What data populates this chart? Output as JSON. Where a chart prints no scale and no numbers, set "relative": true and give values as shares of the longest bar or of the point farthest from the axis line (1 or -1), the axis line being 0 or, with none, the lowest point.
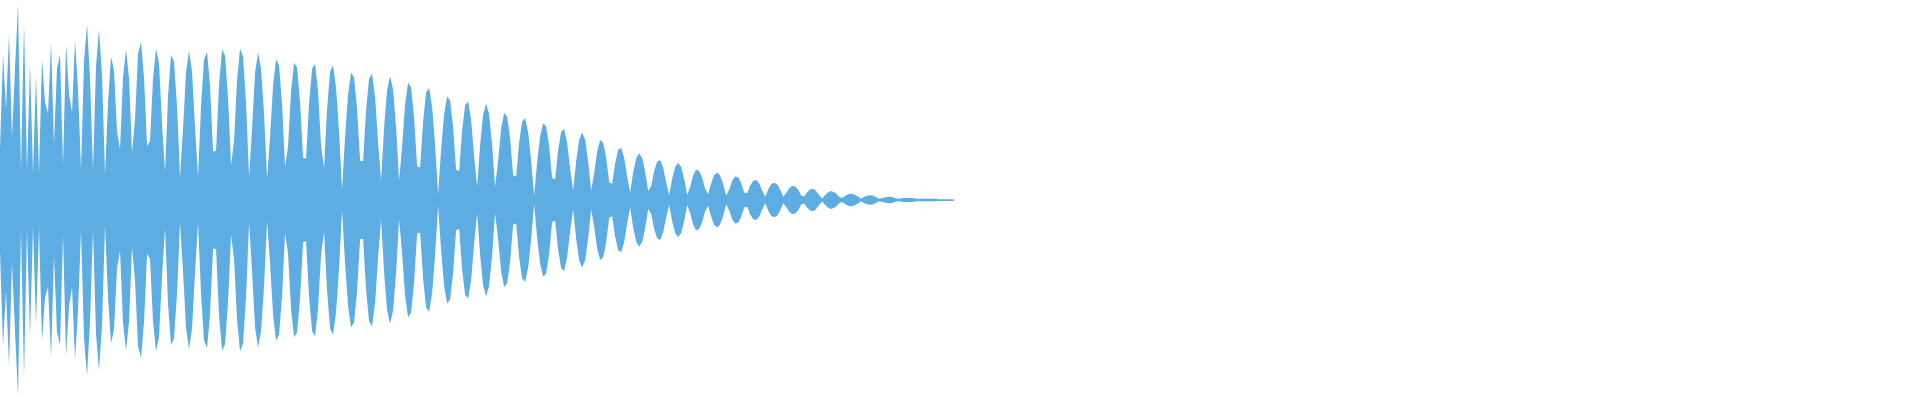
{
  "chart_data": {
    "type": "area",
    "relative": true,
    "categories": [
      null,
      null,
      null,
      null,
      null,
      null,
      null,
      null,
      null,
      null,
      null,
      null,
      null,
      null,
      null,
      null,
      null,
      null,
      null,
      null,
      null,
      null,
      null,
      null,
      null,
      null,
      null,
      null,
      null,
      null,
      null,
      null,
      null,
      null,
      null,
      null,
      null,
      null,
      null,
      null,
      null,
      null,
      null,
      null,
      null,
      null,
      null,
      null,
      null,
      null,
      null,
      null,
      null,
      null,
      null,
      null,
      null,
      null,
      null,
      null,
      null,
      null,
      null,
      null,
      null,
      null,
      null,
      null,
      null,
      null,
      null,
      null,
      null,
      null,
      null,
      null,
      null,
      null,
      null,
      null,
      null,
      null,
      null,
      null,
      null,
      null,
      null,
      null,
      null,
      null,
      null,
      null,
      null,
      null,
      null,
      null,
      null,
      null,
      null,
      null,
      null,
      null,
      null,
      null,
      null,
      null,
      null,
      null,
      null,
      null,
      null,
      null,
      null,
      null,
      null,
      null,
      null,
      null,
      null,
      null,
      null,
      null,
      null,
      null,
      null,
      null,
      null,
      null,
      null,
      null,
      null,
      null,
      null,
      null,
      null,
      null,
      null,
      null,
      null,
      null,
      null,
      null,
      null,
      null,
      null,
      null,
      null,
      null,
      null,
      null,
      null,
      null,
      null,
      null,
      null,
      null,
      null,
      null,
      null,
      null,
      null,
      null,
      null,
      null,
      null,
      null,
      null,
      null,
      null,
      null,
      null,
      null,
      null,
      null,
      null,
      null,
      null,
      null,
      null,
      null,
      null,
      null,
      null,
      null,
      null,
      null,
      null,
      null,
      null,
      null,
      null,
      null,
      null,
      null,
      null,
      null,
      null,
      null,
      null,
      null,
      null,
      null,
      null,
      null,
      null,
      null,
      null,
      null,
      null,
      null,
      null,
      null,
      null,
      null,
      null,
      null,
      null,
      null,
      null,
      null,
      null,
      null,
      null,
      null,
      null,
      null,
      null,
      null,
      null,
      null,
      null,
      null,
      null,
      null,
      null,
      null,
      null,
      null,
      null,
      null,
      null,
      null,
      null,
      null,
      null,
      null,
      null,
      null,
      null,
      null,
      null,
      null,
      null,
      null,
      null,
      null,
      null,
      null,
      null,
      null,
      null,
      null,
      null,
      null,
      null,
      null,
      null,
      null,
      null,
      null,
      null,
      null,
      null,
      null,
      null,
      null,
      null,
      null,
      null,
      null,
      null,
      null,
      null,
      null,
      null,
      null,
      null,
      null,
      null,
      null,
      null,
      null,
      null,
      null,
      null,
      null,
      null,
      null,
      null,
      null,
      null,
      null,
      null,
      null,
      null,
      null,
      null,
      null,
      null,
      null,
      null,
      null,
      null,
      null,
      null,
      null,
      null,
      null,
      null
    ],
    "series": [
      {
        "color": "#5dade2",
        "values": [
          0.266,
          0.744,
          0.466,
          0.846,
          0.322,
          0.668,
          1.0,
          0.154,
          0.9,
          0.154,
          0.696,
          0.138,
          0.634,
          0.142,
          0.72,
          0.5,
          0.442,
          0.804,
          0.286,
          0.674,
          0.74,
          0.178,
          0.796,
          0.544,
          0.446,
          0.816,
          0.564,
          0.156,
          0.706,
          0.898,
          0.616,
          0.154,
          0.684,
          0.868,
          0.636,
          0.13,
          0.498,
          0.732,
          0.66,
          0.348,
          0.26,
          0.626,
          0.768,
          0.62,
          0.242,
          0.408,
          0.746,
          0.806,
          0.622,
          0.274,
          0.302,
          0.618,
          0.772,
          0.698,
          0.388,
          0.144,
          0.53,
          0.74,
          0.706,
          0.474,
          0.116,
          0.366,
          0.654,
          0.76,
          0.654,
          0.366,
          0.118,
          0.482,
          0.718,
          0.756,
          0.58,
          0.248,
          0.25,
          0.59,
          0.768,
          0.736,
          0.52,
          0.178,
          0.302,
          0.612,
          0.772,
          0.732,
          0.492,
          0.118,
          0.364,
          0.65,
          0.754,
          0.67,
          0.436,
          0.11,
          0.322,
          0.584,
          0.718,
          0.686,
          0.486,
          0.168,
          0.276,
          0.556,
          0.7,
          0.676,
          0.498,
          0.214,
          0.212,
          0.494,
          0.67,
          0.696,
          0.552,
          0.276,
          0.164,
          0.466,
          0.656,
          0.688,
          0.572,
          0.344,
          0.052,
          0.326,
          0.542,
          0.65,
          0.624,
          0.462,
          0.2,
          0.198,
          0.458,
          0.62,
          0.644,
          0.526,
          0.292,
          0.1,
          0.368,
          0.562,
          0.632,
          0.562,
          0.368,
          0.1,
          0.274,
          0.49,
          0.598,
          0.574,
          0.42,
          0.172,
          0.166,
          0.402,
          0.548,
          0.572,
          0.474,
          0.28,
          0.03,
          0.26,
          0.438,
          0.528,
          0.508,
          0.372,
          0.154,
          0.148,
          0.354,
          0.484,
          0.502,
          0.408,
          0.222,
          0.068,
          0.282,
          0.436,
          0.492,
          0.436,
          0.282,
          0.068,
          0.2,
          0.362,
          0.444,
          0.426,
          0.312,
          0.126,
          0.12,
          0.292,
          0.4,
          0.418,
          0.346,
          0.202,
          0.02,
          0.192,
          0.324,
          0.392,
          0.376,
          0.276,
          0.112,
          0.106,
          0.254,
          0.348,
          0.362,
          0.292,
          0.16,
          0.048,
          0.198,
          0.306,
          0.346,
          0.306,
          0.198,
          0.048,
          0.136,
          0.248,
          0.306,
          0.294,
          0.216,
          0.092,
          0.082,
          0.188,
          0.256,
          0.266,
          0.216,
          0.12,
          0.038,
          0.14,
          0.212,
          0.238,
          0.214,
          0.144,
          0.046,
          0.07,
          0.148,
          0.196,
          0.204,
          0.164,
          0.088,
          0.026,
          0.108,
          0.168,
          0.19,
          0.168,
          0.108,
          0.026,
          0.068,
          0.126,
          0.154,
          0.148,
          0.114,
          0.056,
          0.03,
          0.086,
          0.126,
          0.14,
          0.124,
          0.082,
          0.022,
          0.054,
          0.098,
          0.12,
          0.116,
          0.086,
          0.038,
          0.034,
          0.074,
          0.098,
          0.102,
          0.084,
          0.048,
          0.016,
          0.054,
          0.08,
          0.088,
          0.08,
          0.054,
          0.016,
          0.036,
          0.06,
          0.072,
          0.07,
          0.052,
          0.022,
          0.018,
          0.04,
          0.054,
          0.058,
          0.046,
          0.026,
          0.008,
          0.026,
          0.04,
          0.046,
          0.04,
          0.028,
          0.012,
          0.014,
          0.024,
          0.03,
          0.032,
          0.026,
          0.016,
          0.006,
          0.016,
          0.022,
          0.024,
          0.022,
          0.014,
          0.006,
          0.01,
          0.014,
          0.016,
          0.016,
          0.012,
          0.006,
          0.008,
          0.01,
          0.012,
          0.01,
          0.01,
          0.008,
          0.006,
          0.006,
          0.006,
          0.006,
          0.006,
          0.006,
          0.006,
          0.004,
          0.004,
          0.004,
          0.004,
          0.004,
          0.002
        ]
      },
      {
        "color": "#5dade2",
        "values": [
          -0.266,
          -0.744,
          -0.466,
          -0.846,
          -0.322,
          -0.668,
          -1.0,
          -0.154,
          -0.9,
          -0.154,
          -0.696,
          -0.138,
          -0.634,
          -0.142,
          -0.72,
          -0.5,
          -0.442,
          -0.804,
          -0.286,
          -0.674,
          -0.74,
          -0.178,
          -0.796,
          -0.544,
          -0.446,
          -0.816,
          -0.564,
          -0.156,
          -0.706,
          -0.898,
          -0.616,
          -0.154,
          -0.684,
          -0.868,
          -0.636,
          -0.13,
          -0.498,
          -0.732,
          -0.66,
          -0.348,
          -0.26,
          -0.626,
          -0.768,
          -0.62,
          -0.242,
          -0.408,
          -0.746,
          -0.806,
          -0.622,
          -0.274,
          -0.302,
          -0.618,
          -0.772,
          -0.698,
          -0.388,
          -0.144,
          -0.53,
          -0.74,
          -0.706,
          -0.474,
          -0.116,
          -0.366,
          -0.654,
          -0.76,
          -0.654,
          -0.366,
          -0.118,
          -0.482,
          -0.718,
          -0.756,
          -0.58,
          -0.248,
          -0.25,
          -0.59,
          -0.768,
          -0.736,
          -0.52,
          -0.178,
          -0.302,
          -0.612,
          -0.772,
          -0.732,
          -0.492,
          -0.118,
          -0.364,
          -0.65,
          -0.754,
          -0.67,
          -0.436,
          -0.11,
          -0.322,
          -0.584,
          -0.718,
          -0.686,
          -0.486,
          -0.168,
          -0.276,
          -0.556,
          -0.7,
          -0.676,
          -0.498,
          -0.214,
          -0.212,
          -0.494,
          -0.67,
          -0.696,
          -0.552,
          -0.276,
          -0.164,
          -0.466,
          -0.656,
          -0.688,
          -0.572,
          -0.344,
          -0.052,
          -0.326,
          -0.542,
          -0.65,
          -0.624,
          -0.462,
          -0.2,
          -0.198,
          -0.458,
          -0.62,
          -0.644,
          -0.526,
          -0.292,
          -0.1,
          -0.368,
          -0.562,
          -0.632,
          -0.562,
          -0.368,
          -0.1,
          -0.274,
          -0.49,
          -0.598,
          -0.574,
          -0.42,
          -0.172,
          -0.166,
          -0.402,
          -0.548,
          -0.572,
          -0.474,
          -0.28,
          -0.03,
          -0.26,
          -0.438,
          -0.528,
          -0.508,
          -0.372,
          -0.154,
          -0.148,
          -0.354,
          -0.484,
          -0.502,
          -0.408,
          -0.222,
          -0.068,
          -0.282,
          -0.436,
          -0.492,
          -0.436,
          -0.282,
          -0.068,
          -0.2,
          -0.362,
          -0.444,
          -0.426,
          -0.312,
          -0.126,
          -0.12,
          -0.292,
          -0.4,
          -0.418,
          -0.346,
          -0.202,
          -0.02,
          -0.192,
          -0.324,
          -0.392,
          -0.376,
          -0.276,
          -0.112,
          -0.106,
          -0.254,
          -0.348,
          -0.362,
          -0.292,
          -0.16,
          -0.048,
          -0.198,
          -0.306,
          -0.346,
          -0.306,
          -0.198,
          -0.048,
          -0.136,
          -0.248,
          -0.306,
          -0.294,
          -0.216,
          -0.092,
          -0.082,
          -0.188,
          -0.256,
          -0.266,
          -0.216,
          -0.12,
          -0.038,
          -0.14,
          -0.212,
          -0.238,
          -0.214,
          -0.144,
          -0.046,
          -0.07,
          -0.148,
          -0.196,
          -0.204,
          -0.164,
          -0.088,
          -0.026,
          -0.108,
          -0.168,
          -0.19,
          -0.168,
          -0.108,
          -0.026,
          -0.068,
          -0.126,
          -0.154,
          -0.148,
          -0.114,
          -0.056,
          -0.03,
          -0.086,
          -0.126,
          -0.14,
          -0.124,
          -0.082,
          -0.022,
          -0.054,
          -0.098,
          -0.12,
          -0.116,
          -0.086,
          -0.038,
          -0.034,
          -0.074,
          -0.098,
          -0.102,
          -0.084,
          -0.048,
          -0.016,
          -0.054,
          -0.08,
          -0.088,
          -0.08,
          -0.054,
          -0.016,
          -0.036,
          -0.06,
          -0.072,
          -0.07,
          -0.052,
          -0.022,
          -0.018,
          -0.04,
          -0.054,
          -0.058,
          -0.046,
          -0.026,
          -0.008,
          -0.026,
          -0.04,
          -0.046,
          -0.04,
          -0.028,
          -0.012,
          -0.014,
          -0.024,
          -0.03,
          -0.032,
          -0.026,
          -0.016,
          -0.006,
          -0.016,
          -0.022,
          -0.024,
          -0.022,
          -0.014,
          -0.006,
          -0.01,
          -0.014,
          -0.016,
          -0.016,
          -0.012,
          -0.006,
          -0.008,
          -0.01,
          -0.012,
          -0.01,
          -0.01,
          -0.008,
          -0.006,
          -0.006,
          -0.006,
          -0.006,
          -0.006,
          -0.006,
          -0.006,
          -0.004,
          -0.004,
          -0.004,
          -0.004,
          -0.004,
          -0.002
        ]
      }
    ]
  }
}
